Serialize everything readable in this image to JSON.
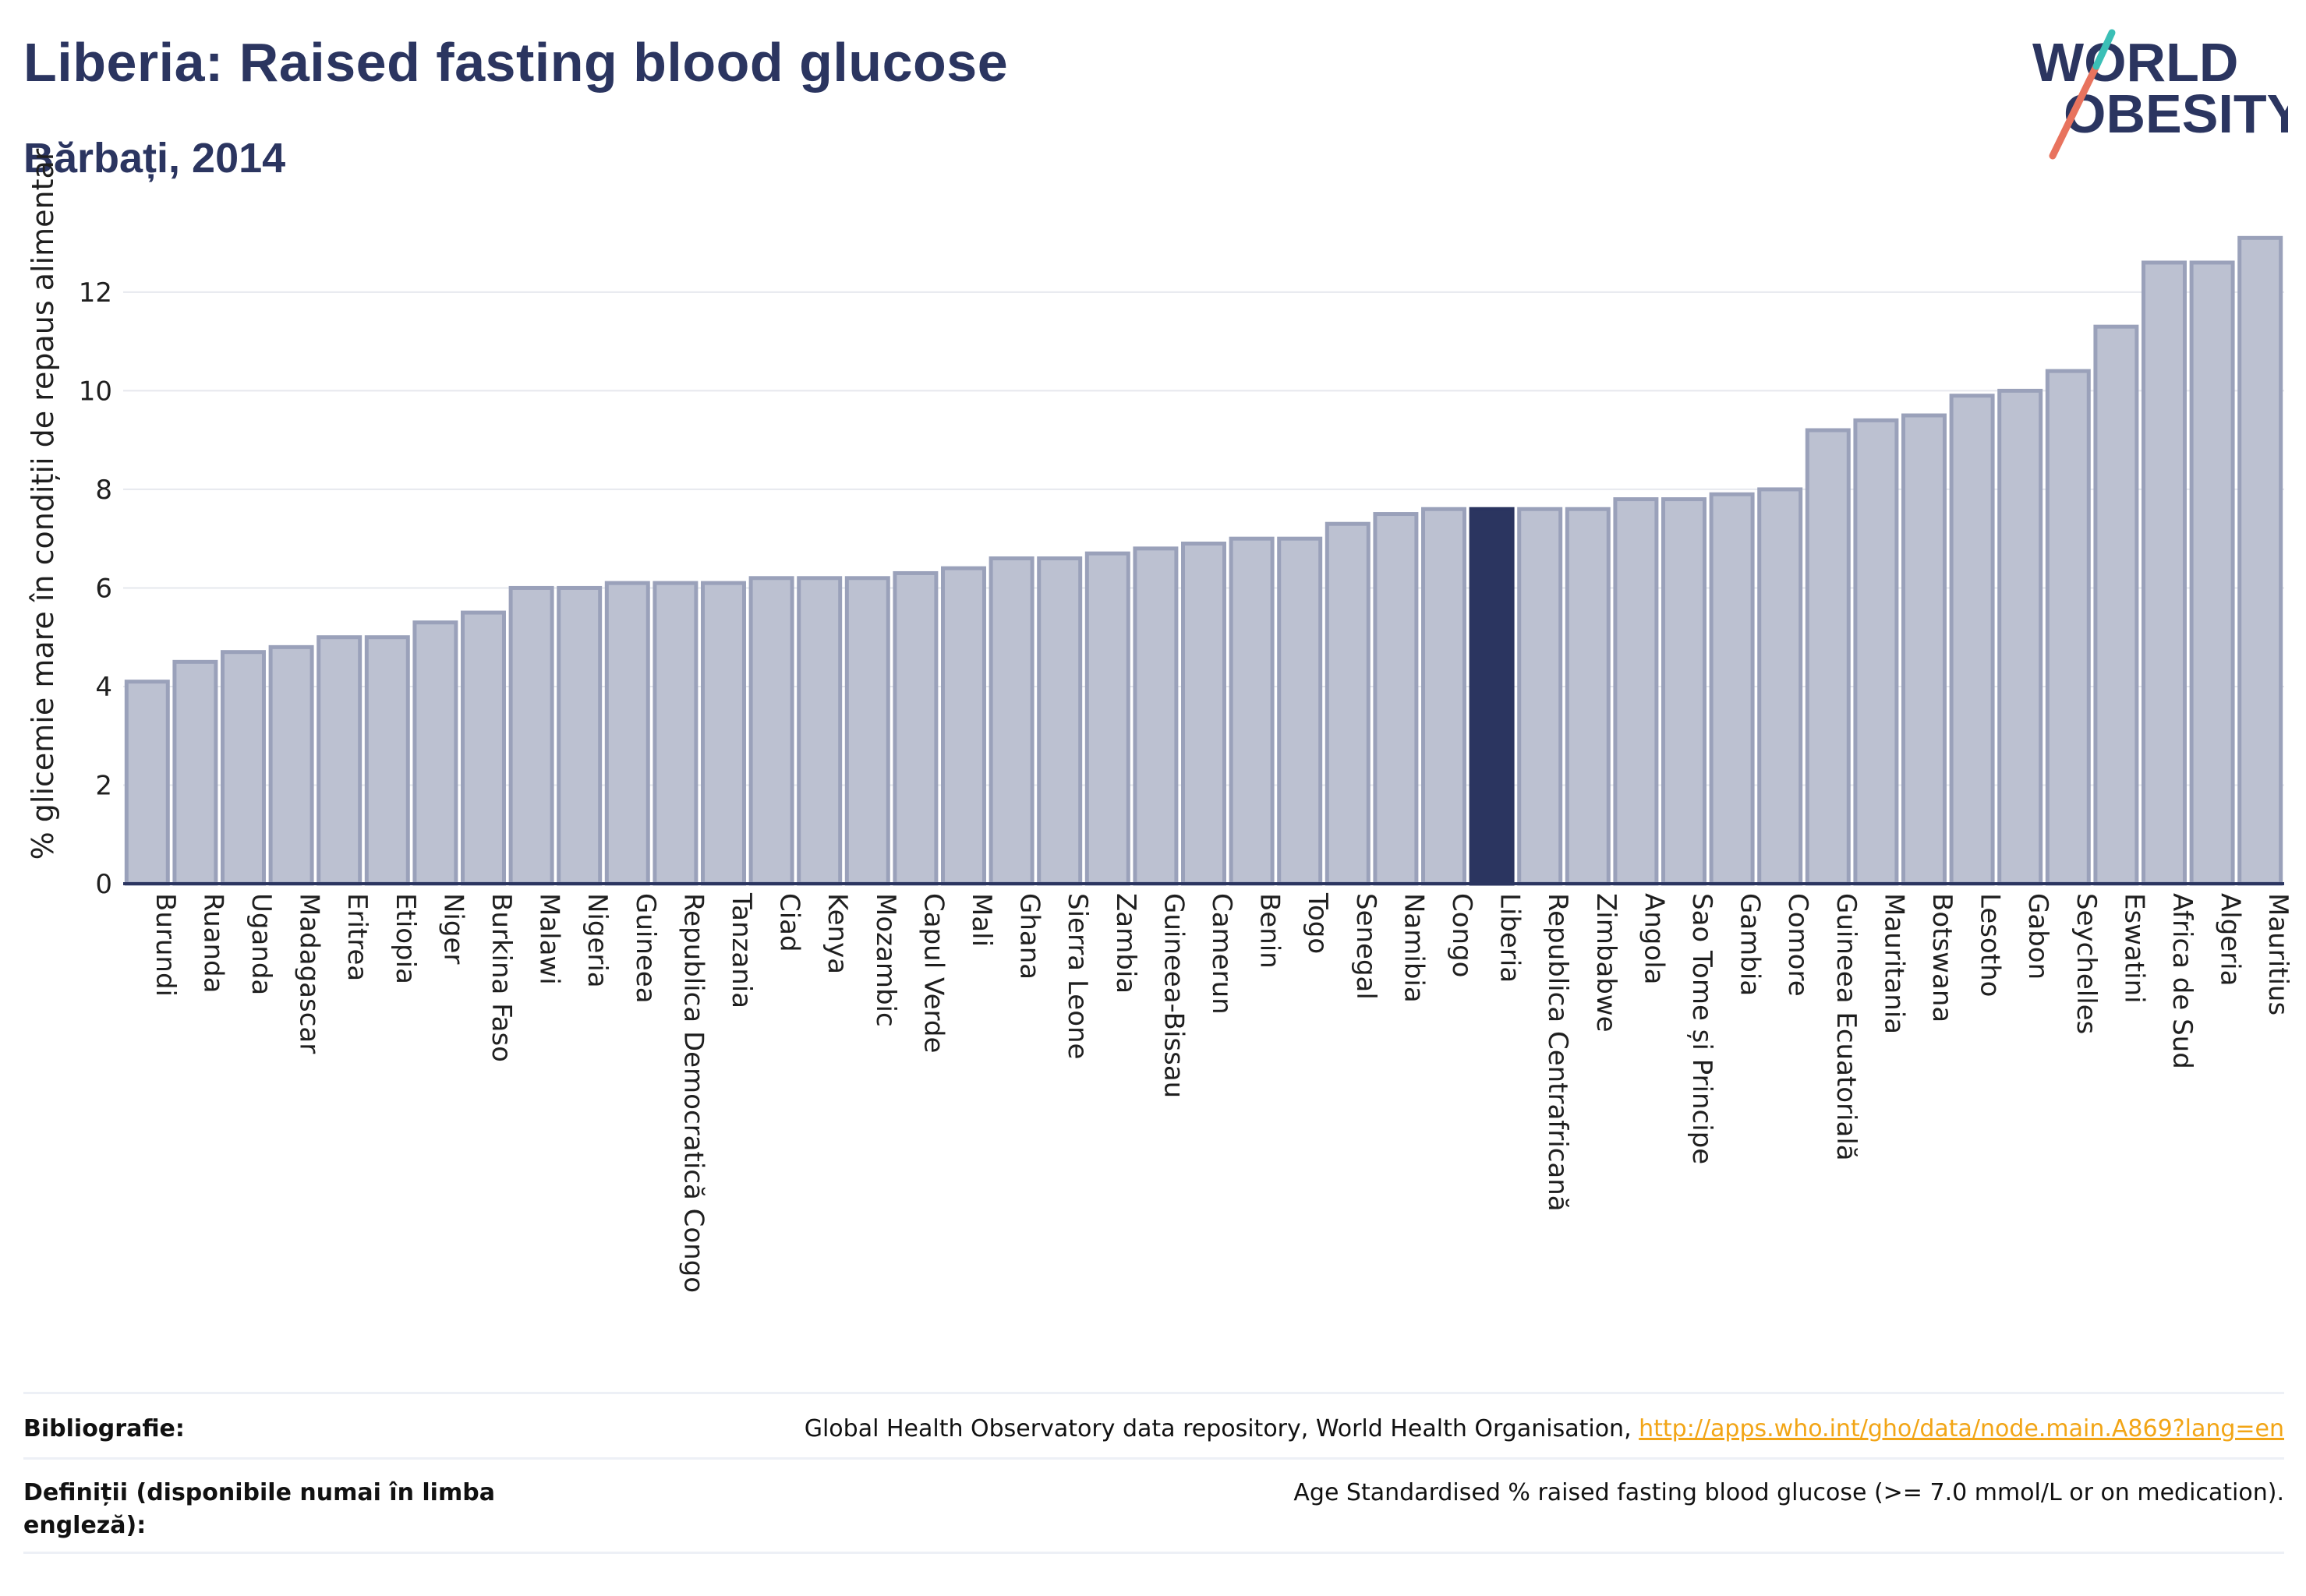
{
  "header": {
    "title": "Liberia: Raised fasting blood glucose",
    "subtitle": "Bărbați, 2014"
  },
  "logo": {
    "line1": "WORLD",
    "line2": "OBESITY",
    "accent": "#e8735e",
    "accent2": "#3bbfb6",
    "color": "#2b3560"
  },
  "colors": {
    "bar": "#bcc1d1",
    "bar_stroke": "#9aa1ba",
    "highlight": "#2b3560",
    "grid": "#e6e8ee"
  },
  "chart_data": {
    "type": "bar",
    "ylabel": "% glicemie mare în condiții de repaus alimentar",
    "ylim": [
      0,
      13.5
    ],
    "yticks": [
      0,
      2,
      4,
      6,
      8,
      10,
      12
    ],
    "highlight": "Liberia",
    "categories": [
      "Burundi",
      "Ruanda",
      "Uganda",
      "Madagascar",
      "Eritrea",
      "Etiopia",
      "Niger",
      "Burkina Faso",
      "Malawi",
      "Nigeria",
      "Guineea",
      "Republica Democratică Congo",
      "Tanzania",
      "Ciad",
      "Kenya",
      "Mozambic",
      "Capul Verde",
      "Mali",
      "Ghana",
      "Sierra Leone",
      "Zambia",
      "Guineea-Bissau",
      "Camerun",
      "Benin",
      "Togo",
      "Senegal",
      "Namibia",
      "Congo",
      "Liberia",
      "Republica Centrafricană",
      "Zimbabwe",
      "Angola",
      "Sao Tome și Principe",
      "Gambia",
      "Comore",
      "Guineea Ecuatorială",
      "Mauritania",
      "Botswana",
      "Lesotho",
      "Gabon",
      "Seychelles",
      "Eswatini",
      "Africa de Sud",
      "Algeria",
      "Mauritius"
    ],
    "values": [
      4.1,
      4.5,
      4.7,
      4.8,
      5.0,
      5.0,
      5.3,
      5.5,
      6.0,
      6.0,
      6.1,
      6.1,
      6.1,
      6.2,
      6.2,
      6.2,
      6.3,
      6.4,
      6.6,
      6.6,
      6.7,
      6.8,
      6.9,
      7.0,
      7.0,
      7.3,
      7.5,
      7.6,
      7.6,
      7.6,
      7.6,
      7.8,
      7.8,
      7.9,
      8.0,
      9.2,
      9.4,
      9.5,
      9.9,
      10.0,
      10.4,
      11.3,
      12.6,
      12.6,
      13.1
    ]
  },
  "footer": {
    "bibliography_label": "Bibliografie:",
    "bibliography_text": "Global Health Observatory data repository, World Health Organisation, ",
    "bibliography_link": "http://apps.who.int/gho/data/node.main.A869?lang=en",
    "definitions_label": "Definiții (disponibile numai în limba engleză):",
    "definitions_text": "Age Standardised % raised fasting blood glucose (>= 7.0 mmol/L or on medication)."
  }
}
